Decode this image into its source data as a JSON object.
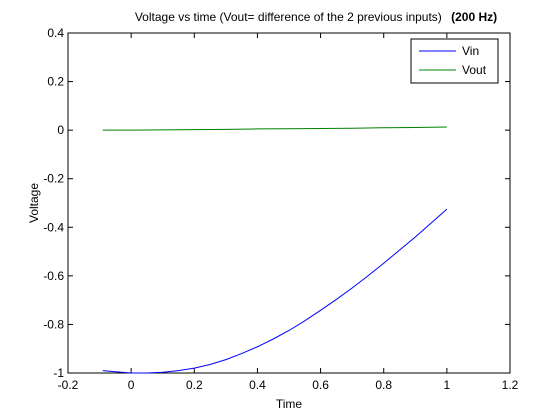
{
  "chart_data": {
    "type": "line",
    "title": "Voltage vs time (Vout= difference of the 2 previous inputs)",
    "title_bold": "(200 Hz)",
    "xlabel": "Time",
    "ylabel": "Voltage",
    "xlim": [
      -0.2,
      1.2
    ],
    "ylim": [
      -1,
      0.4
    ],
    "xticks": [
      -0.2,
      0,
      0.2,
      0.4,
      0.6,
      0.8,
      1,
      1.2
    ],
    "xtick_labels": [
      "-0.2",
      "0",
      "0.2",
      "0.4",
      "0.6",
      "0.8",
      "1",
      "1.2"
    ],
    "yticks": [
      -1,
      -0.8,
      -0.6,
      -0.4,
      -0.2,
      0,
      0.2,
      0.4
    ],
    "ytick_labels": [
      "-1",
      "-0.8",
      "-0.6",
      "-0.4",
      "-0.2",
      "0",
      "0.2",
      "0.4"
    ],
    "grid": false,
    "legend_position": "top-right",
    "series": [
      {
        "name": "Vin",
        "color": "#0000ff",
        "x": [
          -0.09,
          -0.05,
          0,
          0.05,
          0.1,
          0.15,
          0.2,
          0.25,
          0.3,
          0.35,
          0.4,
          0.45,
          0.5,
          0.55,
          0.6,
          0.65,
          0.7,
          0.75,
          0.8,
          0.85,
          0.9,
          0.95,
          1.0
        ],
        "y": [
          -0.99,
          -0.995,
          -1.0,
          -1.0,
          -0.997,
          -0.99,
          -0.98,
          -0.965,
          -0.945,
          -0.92,
          -0.892,
          -0.86,
          -0.825,
          -0.785,
          -0.742,
          -0.697,
          -0.65,
          -0.6,
          -0.548,
          -0.494,
          -0.44,
          -0.383,
          -0.325
        ]
      },
      {
        "name": "Vout",
        "color": "#008000",
        "x": [
          -0.09,
          0,
          0.1,
          0.2,
          0.3,
          0.4,
          0.5,
          0.6,
          0.7,
          0.8,
          0.9,
          1.0
        ],
        "y": [
          0.0,
          0.0,
          0.001,
          0.002,
          0.003,
          0.005,
          0.006,
          0.007,
          0.008,
          0.01,
          0.011,
          0.013
        ]
      }
    ]
  }
}
